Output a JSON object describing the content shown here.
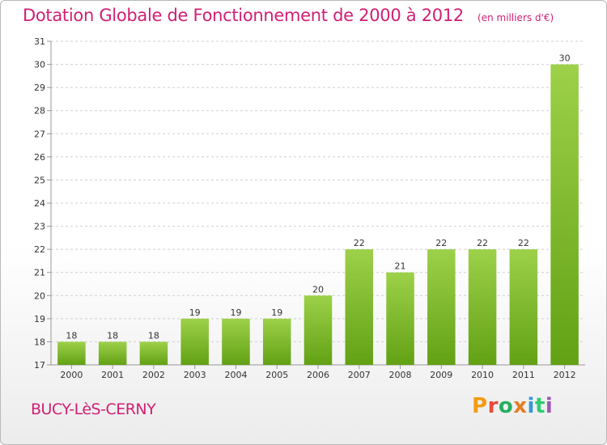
{
  "header": {
    "title": "Dotation Globale de Fonctionnement de 2000 à 2012",
    "subtitle": "(en milliers d'€)"
  },
  "footer": {
    "commune": "BUCY-LèS-CERNY",
    "brand": "Proxiti"
  },
  "brand_colors": [
    "#f39c12",
    "#e74c3c",
    "#27ae60",
    "#e67e22",
    "#3498db",
    "#2ecc71",
    "#9b59b6"
  ],
  "colors": {
    "title": "#d11f73",
    "bar_top": "#9dd14a",
    "bar_bottom": "#62a114",
    "grid": "#cfcfcf",
    "axis_text": "#333333"
  },
  "chart_data": {
    "type": "bar",
    "title": "Dotation Globale de Fonctionnement de 2000 à 2012",
    "subtitle": "(en milliers d'€)",
    "xlabel": "",
    "ylabel": "",
    "categories": [
      "2000",
      "2001",
      "2002",
      "2003",
      "2004",
      "2005",
      "2006",
      "2007",
      "2008",
      "2009",
      "2010",
      "2011",
      "2012"
    ],
    "values": [
      18,
      18,
      18,
      19,
      19,
      19,
      20,
      22,
      21,
      22,
      22,
      22,
      30
    ],
    "ylim": [
      17,
      31
    ],
    "yticks": [
      17,
      18,
      19,
      20,
      21,
      22,
      23,
      24,
      25,
      26,
      27,
      28,
      29,
      30,
      31
    ],
    "grid": true,
    "data_labels": true
  }
}
